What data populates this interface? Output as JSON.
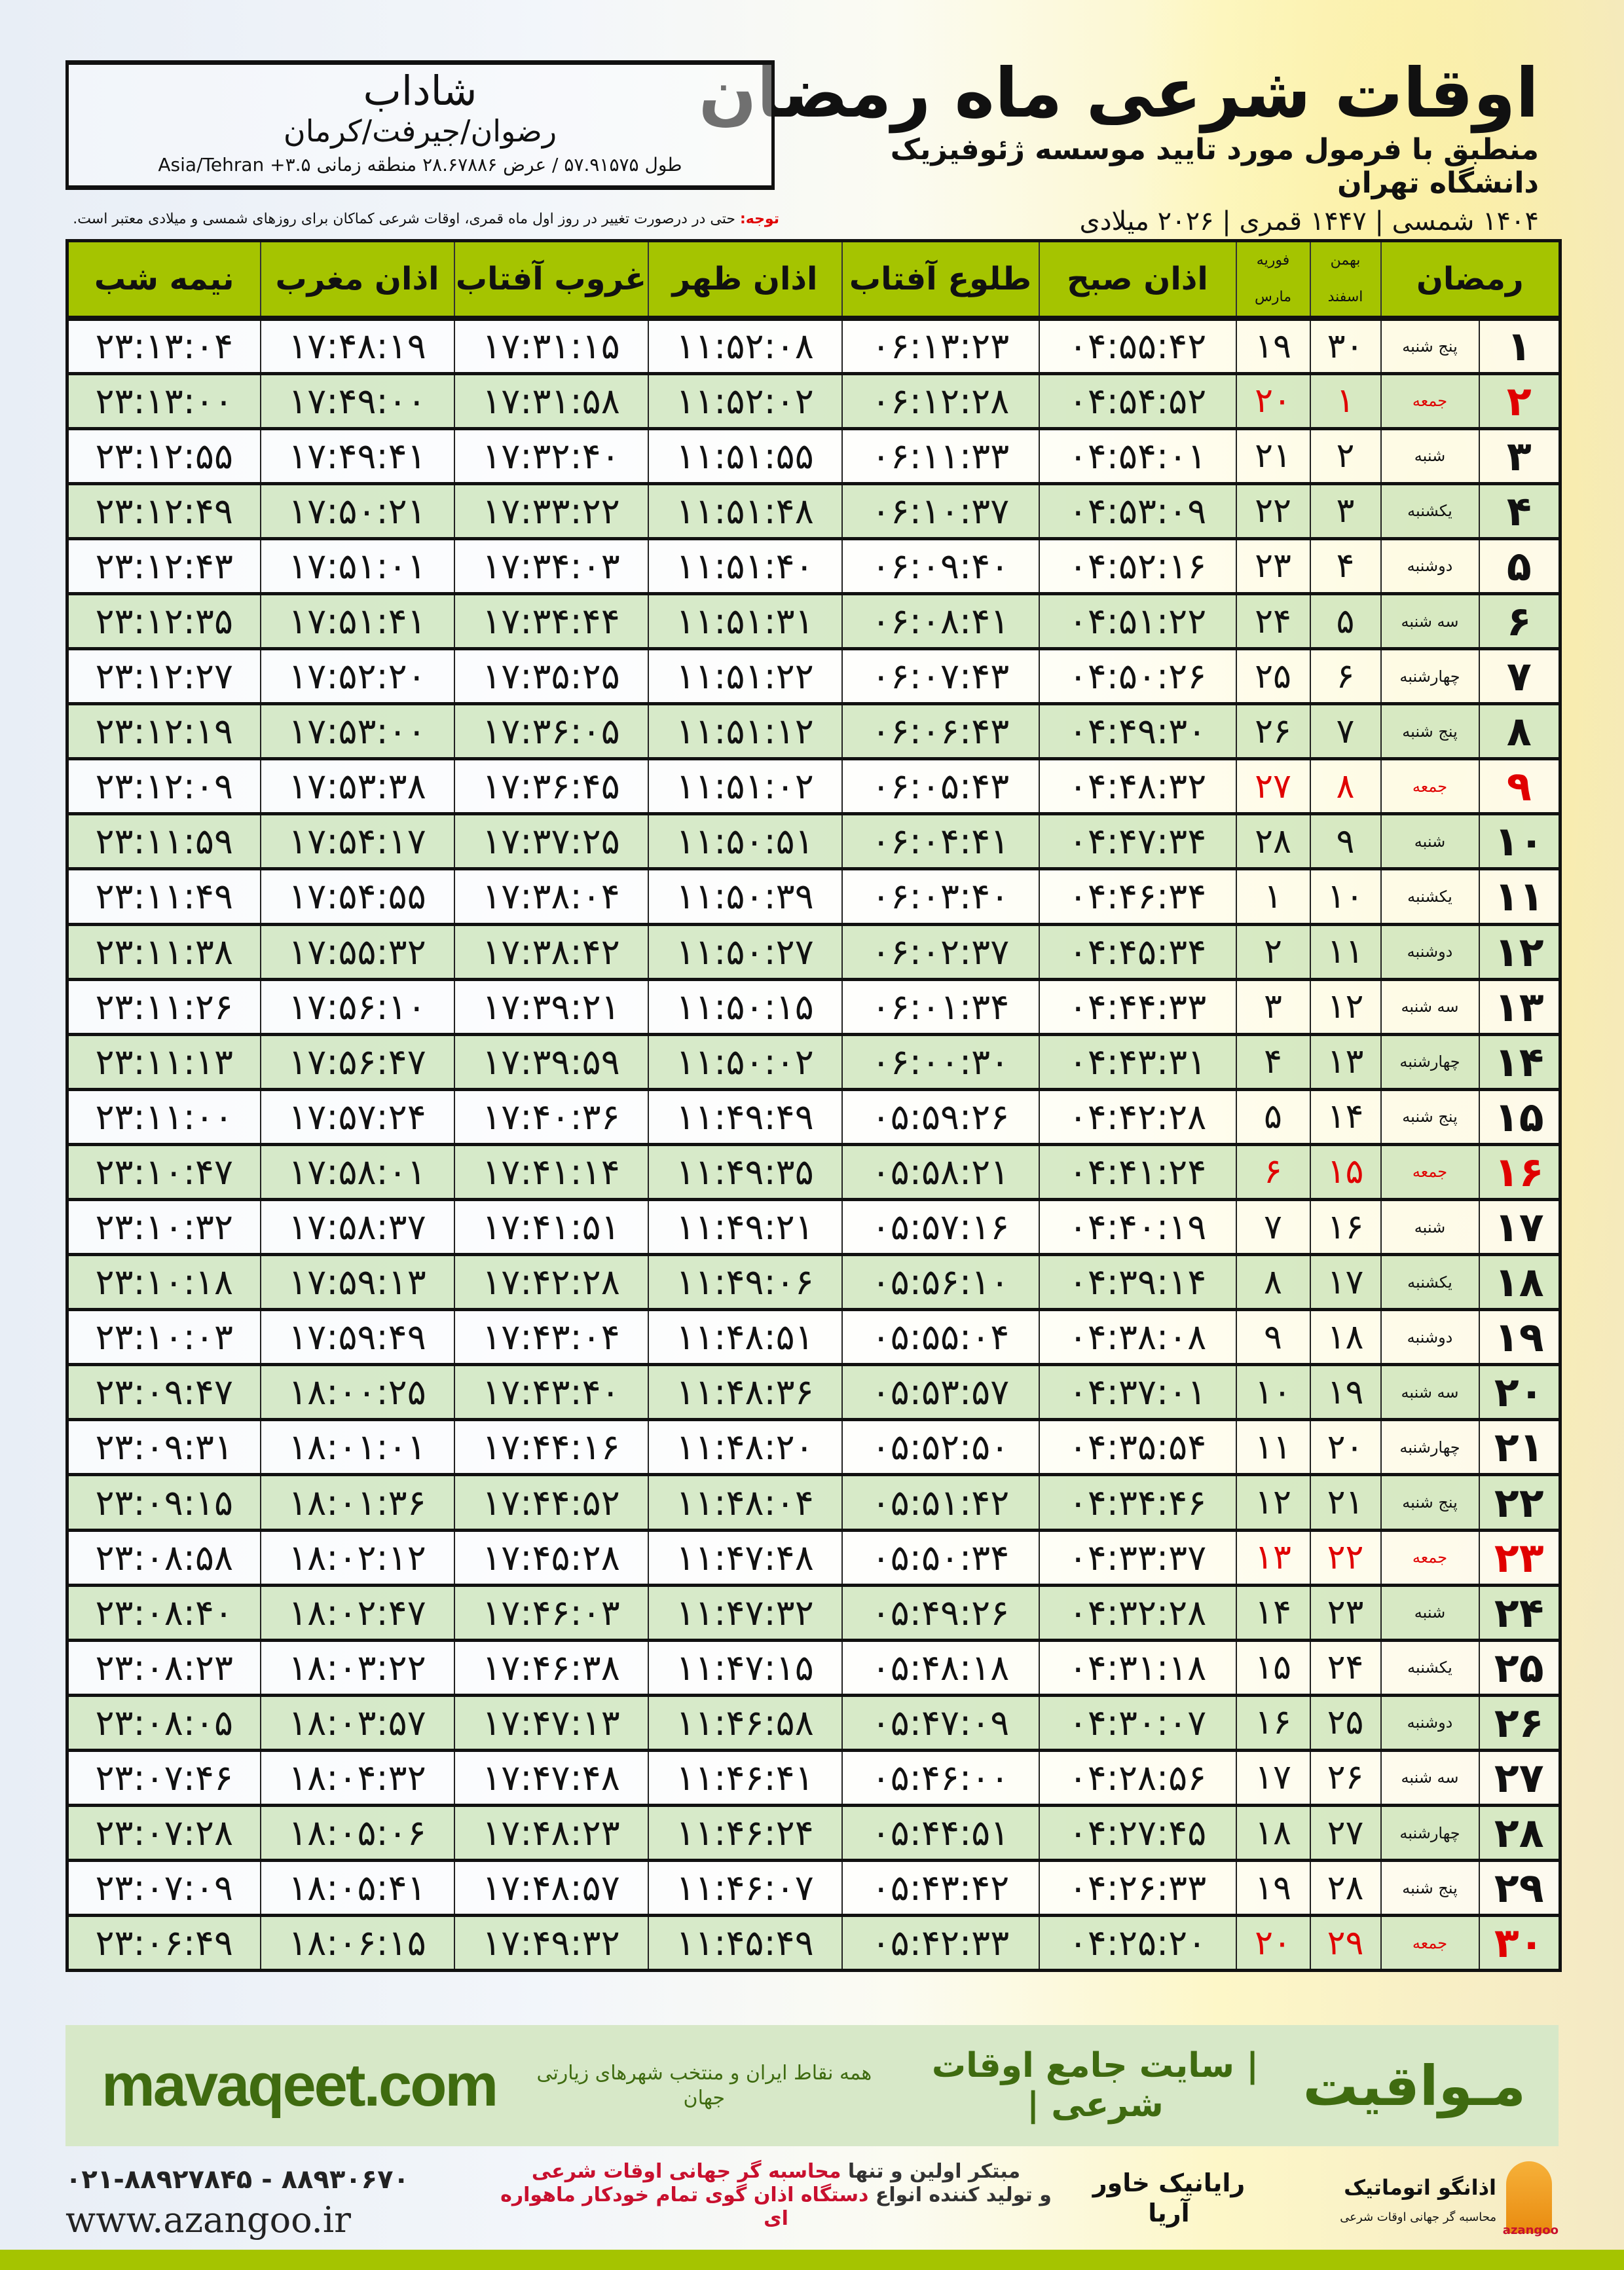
{
  "header": {
    "title": "اوقات شرعی ماه رمضان",
    "subtitle": "منطبق با فرمول مورد تایید موسسه ژئوفیزیک دانشگاه تهران",
    "dates": "۱۴۰۴ شمسی | ۱۴۴۷ قمری | ۲۰۲۶ میلادی"
  },
  "location": {
    "city": "شاداب",
    "region": "رضوان/جیرفت/کرمان",
    "coords": "طول ۵۷.۹۱۵۷۵ / عرض ۲۸.۶۷۸۸۶ منطقه زمانی Asia/Tehran +۳.۵"
  },
  "note": {
    "label": "توجه:",
    "text": " حتی در درصورت تغییر در روز اول ماه قمری، اوقات شرعی کماکان برای روزهای شمسی و میلادی معتبر است."
  },
  "columns": {
    "ramadan": "رمضان",
    "solar_top": "بهمن",
    "solar_bottom": "اسفند",
    "greg_top": "فوریه",
    "greg_bottom": "مارس",
    "fajr": "اذان صبح",
    "sunrise": "طلوع آفتاب",
    "dhuhr": "اذان ظهر",
    "sunset": "غروب آفتاب",
    "maghrib": "اذان مغرب",
    "midnight": "نیمه شب"
  },
  "colors": {
    "header_green": "#a5c400",
    "row_green": "#d4e8c4",
    "holiday_red": "#e00000",
    "brand_green": "#3f6b10"
  },
  "rows": [
    [
      "۱",
      "پنج شنبه",
      "۳۰",
      "۱۹",
      "۰۴:۵۵:۴۲",
      "۰۶:۱۳:۲۳",
      "۱۱:۵۲:۰۸",
      "۱۷:۳۱:۱۵",
      "۱۷:۴۸:۱۹",
      "۲۳:۱۳:۰۴",
      false
    ],
    [
      "۲",
      "جمعه",
      "۱",
      "۲۰",
      "۰۴:۵۴:۵۲",
      "۰۶:۱۲:۲۸",
      "۱۱:۵۲:۰۲",
      "۱۷:۳۱:۵۸",
      "۱۷:۴۹:۰۰",
      "۲۳:۱۳:۰۰",
      true
    ],
    [
      "۳",
      "شنبه",
      "۲",
      "۲۱",
      "۰۴:۵۴:۰۱",
      "۰۶:۱۱:۳۳",
      "۱۱:۵۱:۵۵",
      "۱۷:۳۲:۴۰",
      "۱۷:۴۹:۴۱",
      "۲۳:۱۲:۵۵",
      false
    ],
    [
      "۴",
      "یکشنبه",
      "۳",
      "۲۲",
      "۰۴:۵۳:۰۹",
      "۰۶:۱۰:۳۷",
      "۱۱:۵۱:۴۸",
      "۱۷:۳۳:۲۲",
      "۱۷:۵۰:۲۱",
      "۲۳:۱۲:۴۹",
      false
    ],
    [
      "۵",
      "دوشنبه",
      "۴",
      "۲۳",
      "۰۴:۵۲:۱۶",
      "۰۶:۰۹:۴۰",
      "۱۱:۵۱:۴۰",
      "۱۷:۳۴:۰۳",
      "۱۷:۵۱:۰۱",
      "۲۳:۱۲:۴۳",
      false
    ],
    [
      "۶",
      "سه شنبه",
      "۵",
      "۲۴",
      "۰۴:۵۱:۲۲",
      "۰۶:۰۸:۴۱",
      "۱۱:۵۱:۳۱",
      "۱۷:۳۴:۴۴",
      "۱۷:۵۱:۴۱",
      "۲۳:۱۲:۳۵",
      false
    ],
    [
      "۷",
      "چهارشنبه",
      "۶",
      "۲۵",
      "۰۴:۵۰:۲۶",
      "۰۶:۰۷:۴۳",
      "۱۱:۵۱:۲۲",
      "۱۷:۳۵:۲۵",
      "۱۷:۵۲:۲۰",
      "۲۳:۱۲:۲۷",
      false
    ],
    [
      "۸",
      "پنج شنبه",
      "۷",
      "۲۶",
      "۰۴:۴۹:۳۰",
      "۰۶:۰۶:۴۳",
      "۱۱:۵۱:۱۲",
      "۱۷:۳۶:۰۵",
      "۱۷:۵۳:۰۰",
      "۲۳:۱۲:۱۹",
      false
    ],
    [
      "۹",
      "جمعه",
      "۸",
      "۲۷",
      "۰۴:۴۸:۳۲",
      "۰۶:۰۵:۴۳",
      "۱۱:۵۱:۰۲",
      "۱۷:۳۶:۴۵",
      "۱۷:۵۳:۳۸",
      "۲۳:۱۲:۰۹",
      true
    ],
    [
      "۱۰",
      "شنبه",
      "۹",
      "۲۸",
      "۰۴:۴۷:۳۴",
      "۰۶:۰۴:۴۱",
      "۱۱:۵۰:۵۱",
      "۱۷:۳۷:۲۵",
      "۱۷:۵۴:۱۷",
      "۲۳:۱۱:۵۹",
      false
    ],
    [
      "۱۱",
      "یکشنبه",
      "۱۰",
      "۱",
      "۰۴:۴۶:۳۴",
      "۰۶:۰۳:۴۰",
      "۱۱:۵۰:۳۹",
      "۱۷:۳۸:۰۴",
      "۱۷:۵۴:۵۵",
      "۲۳:۱۱:۴۹",
      false
    ],
    [
      "۱۲",
      "دوشنبه",
      "۱۱",
      "۲",
      "۰۴:۴۵:۳۴",
      "۰۶:۰۲:۳۷",
      "۱۱:۵۰:۲۷",
      "۱۷:۳۸:۴۲",
      "۱۷:۵۵:۳۲",
      "۲۳:۱۱:۳۸",
      false
    ],
    [
      "۱۳",
      "سه شنبه",
      "۱۲",
      "۳",
      "۰۴:۴۴:۳۳",
      "۰۶:۰۱:۳۴",
      "۱۱:۵۰:۱۵",
      "۱۷:۳۹:۲۱",
      "۱۷:۵۶:۱۰",
      "۲۳:۱۱:۲۶",
      false
    ],
    [
      "۱۴",
      "چهارشنبه",
      "۱۳",
      "۴",
      "۰۴:۴۳:۳۱",
      "۰۶:۰۰:۳۰",
      "۱۱:۵۰:۰۲",
      "۱۷:۳۹:۵۹",
      "۱۷:۵۶:۴۷",
      "۲۳:۱۱:۱۳",
      false
    ],
    [
      "۱۵",
      "پنج شنبه",
      "۱۴",
      "۵",
      "۰۴:۴۲:۲۸",
      "۰۵:۵۹:۲۶",
      "۱۱:۴۹:۴۹",
      "۱۷:۴۰:۳۶",
      "۱۷:۵۷:۲۴",
      "۲۳:۱۱:۰۰",
      false
    ],
    [
      "۱۶",
      "جمعه",
      "۱۵",
      "۶",
      "۰۴:۴۱:۲۴",
      "۰۵:۵۸:۲۱",
      "۱۱:۴۹:۳۵",
      "۱۷:۴۱:۱۴",
      "۱۷:۵۸:۰۱",
      "۲۳:۱۰:۴۷",
      true
    ],
    [
      "۱۷",
      "شنبه",
      "۱۶",
      "۷",
      "۰۴:۴۰:۱۹",
      "۰۵:۵۷:۱۶",
      "۱۱:۴۹:۲۱",
      "۱۷:۴۱:۵۱",
      "۱۷:۵۸:۳۷",
      "۲۳:۱۰:۳۲",
      false
    ],
    [
      "۱۸",
      "یکشنبه",
      "۱۷",
      "۸",
      "۰۴:۳۹:۱۴",
      "۰۵:۵۶:۱۰",
      "۱۱:۴۹:۰۶",
      "۱۷:۴۲:۲۸",
      "۱۷:۵۹:۱۳",
      "۲۳:۱۰:۱۸",
      false
    ],
    [
      "۱۹",
      "دوشنبه",
      "۱۸",
      "۹",
      "۰۴:۳۸:۰۸",
      "۰۵:۵۵:۰۴",
      "۱۱:۴۸:۵۱",
      "۱۷:۴۳:۰۴",
      "۱۷:۵۹:۴۹",
      "۲۳:۱۰:۰۳",
      false
    ],
    [
      "۲۰",
      "سه شنبه",
      "۱۹",
      "۱۰",
      "۰۴:۳۷:۰۱",
      "۰۵:۵۳:۵۷",
      "۱۱:۴۸:۳۶",
      "۱۷:۴۳:۴۰",
      "۱۸:۰۰:۲۵",
      "۲۳:۰۹:۴۷",
      false
    ],
    [
      "۲۱",
      "چهارشنبه",
      "۲۰",
      "۱۱",
      "۰۴:۳۵:۵۴",
      "۰۵:۵۲:۵۰",
      "۱۱:۴۸:۲۰",
      "۱۷:۴۴:۱۶",
      "۱۸:۰۱:۰۱",
      "۲۳:۰۹:۳۱",
      false
    ],
    [
      "۲۲",
      "پنج شنبه",
      "۲۱",
      "۱۲",
      "۰۴:۳۴:۴۶",
      "۰۵:۵۱:۴۲",
      "۱۱:۴۸:۰۴",
      "۱۷:۴۴:۵۲",
      "۱۸:۰۱:۳۶",
      "۲۳:۰۹:۱۵",
      false
    ],
    [
      "۲۳",
      "جمعه",
      "۲۲",
      "۱۳",
      "۰۴:۳۳:۳۷",
      "۰۵:۵۰:۳۴",
      "۱۱:۴۷:۴۸",
      "۱۷:۴۵:۲۸",
      "۱۸:۰۲:۱۲",
      "۲۳:۰۸:۵۸",
      true
    ],
    [
      "۲۴",
      "شنبه",
      "۲۳",
      "۱۴",
      "۰۴:۳۲:۲۸",
      "۰۵:۴۹:۲۶",
      "۱۱:۴۷:۳۲",
      "۱۷:۴۶:۰۳",
      "۱۸:۰۲:۴۷",
      "۲۳:۰۸:۴۰",
      false
    ],
    [
      "۲۵",
      "یکشنبه",
      "۲۴",
      "۱۵",
      "۰۴:۳۱:۱۸",
      "۰۵:۴۸:۱۸",
      "۱۱:۴۷:۱۵",
      "۱۷:۴۶:۳۸",
      "۱۸:۰۳:۲۲",
      "۲۳:۰۸:۲۳",
      false
    ],
    [
      "۲۶",
      "دوشنبه",
      "۲۵",
      "۱۶",
      "۰۴:۳۰:۰۷",
      "۰۵:۴۷:۰۹",
      "۱۱:۴۶:۵۸",
      "۱۷:۴۷:۱۳",
      "۱۸:۰۳:۵۷",
      "۲۳:۰۸:۰۵",
      false
    ],
    [
      "۲۷",
      "سه شنبه",
      "۲۶",
      "۱۷",
      "۰۴:۲۸:۵۶",
      "۰۵:۴۶:۰۰",
      "۱۱:۴۶:۴۱",
      "۱۷:۴۷:۴۸",
      "۱۸:۰۴:۳۲",
      "۲۳:۰۷:۴۶",
      false
    ],
    [
      "۲۸",
      "چهارشنبه",
      "۲۷",
      "۱۸",
      "۰۴:۲۷:۴۵",
      "۰۵:۴۴:۵۱",
      "۱۱:۴۶:۲۴",
      "۱۷:۴۸:۲۳",
      "۱۸:۰۵:۰۶",
      "۲۳:۰۷:۲۸",
      false
    ],
    [
      "۲۹",
      "پنج شنبه",
      "۲۸",
      "۱۹",
      "۰۴:۲۶:۳۳",
      "۰۵:۴۳:۴۲",
      "۱۱:۴۶:۰۷",
      "۱۷:۴۸:۵۷",
      "۱۸:۰۵:۴۱",
      "۲۳:۰۷:۰۹",
      false
    ],
    [
      "۳۰",
      "جمعه",
      "۲۹",
      "۲۰",
      "۰۴:۲۵:۲۰",
      "۰۵:۴۲:۳۳",
      "۱۱:۴۵:۴۹",
      "۱۷:۴۹:۳۲",
      "۱۸:۰۶:۱۵",
      "۲۳:۰۶:۴۹",
      true
    ]
  ],
  "footer": {
    "brand": "مـواقیت",
    "tagline": "| سایت جامع اوقات شرعی |",
    "tagsub": "همه نقاط ایران و منتخب شهرهای زیارتی جهان",
    "site": "mavaqeet.com",
    "slogan1a": "مبتکر اولین و تنها ",
    "slogan1b": "محاسبه گر جهانی اوقات شرعی",
    "slogan2a": "و تولید کننده انواع ",
    "slogan2b": "دستگاه اذان گوی تمام خودکار ماهواره ای",
    "rayanik": "رایانیک خاور آریا",
    "azangoo_logo": "اذانگو اتوماتیک",
    "azangoo_sub": "محاسبه گر جهانی اوقات شرعی",
    "azangoo_en": "azangoo",
    "phone": "۰۲۱-۸۸۹۲۷۸۴۵ - ۸۸۹۳۰۶۷۰",
    "web": "www.azangoo.ir"
  }
}
